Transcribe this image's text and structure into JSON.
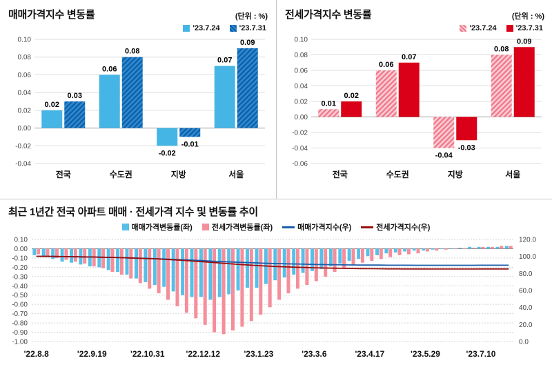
{
  "chart_data": [
    {
      "id": "svg-sale",
      "type": "bar",
      "title": "매매가격지수 변동률",
      "unit": "(단위 : %)",
      "categories": [
        "전국",
        "수도권",
        "지방",
        "서울"
      ],
      "series": [
        {
          "name": "'23.7.24",
          "color": "#45b5e5",
          "values": [
            0.02,
            0.06,
            -0.02,
            0.07
          ]
        },
        {
          "name": "'23.7.31",
          "color": "#2e8bd2",
          "stripe": "#0e5fa8",
          "values": [
            0.03,
            0.08,
            -0.01,
            0.09
          ]
        }
      ],
      "ylim": [
        -0.04,
        0.1
      ],
      "ytick": 0.02,
      "grid": true,
      "legend_position": "top-right"
    },
    {
      "id": "svg-jeonse",
      "type": "bar",
      "title": "전세가격지수 변동률",
      "unit": "(단위 : %)",
      "categories": [
        "전국",
        "수도권",
        "지방",
        "서울"
      ],
      "series": [
        {
          "name": "'23.7.24",
          "color": "#facdd4",
          "stripe": "#f0798b",
          "values": [
            0.01,
            0.06,
            -0.04,
            0.08
          ]
        },
        {
          "name": "'23.7.31",
          "color": "#da0017",
          "values": [
            0.02,
            0.07,
            -0.03,
            0.09
          ]
        }
      ],
      "ylim": [
        -0.06,
        0.1
      ],
      "ytick": 0.02,
      "grid": true,
      "legend_position": "top-right"
    },
    {
      "id": "svg-trend",
      "type": "bar+line",
      "title": "최근 1년간 전국 아파트 매매 · 전세가격 지수 및 변동률 추이",
      "x_tick_labels": [
        "'22.8.8",
        "'22.9.19",
        "'22.10.31",
        "'22.12.12",
        "'23.1.23",
        "'23.3.6",
        "'23.4.17",
        "'23.5.29",
        "'23.7.10"
      ],
      "x_tick_indices": [
        0,
        6,
        12,
        18,
        24,
        30,
        36,
        42,
        48
      ],
      "bar_series": [
        {
          "name": "매매가격변동률(좌)",
          "color": "#56c0e8",
          "values": [
            -0.07,
            -0.09,
            -0.11,
            -0.14,
            -0.15,
            -0.17,
            -0.19,
            -0.2,
            -0.23,
            -0.25,
            -0.28,
            -0.32,
            -0.36,
            -0.39,
            -0.41,
            -0.46,
            -0.5,
            -0.52,
            -0.52,
            -0.55,
            -0.52,
            -0.49,
            -0.45,
            -0.42,
            -0.42,
            -0.38,
            -0.34,
            -0.31,
            -0.28,
            -0.26,
            -0.24,
            -0.22,
            -0.19,
            -0.16,
            -0.13,
            -0.11,
            -0.08,
            -0.07,
            -0.05,
            -0.04,
            -0.03,
            -0.02,
            -0.02,
            -0.01,
            0.0,
            0.0,
            0.01,
            0.02,
            0.02,
            0.02,
            0.02,
            0.03
          ]
        },
        {
          "name": "전세가격변동률(좌)",
          "color": "#f58e9b",
          "values": [
            -0.06,
            -0.08,
            -0.1,
            -0.12,
            -0.14,
            -0.16,
            -0.19,
            -0.21,
            -0.25,
            -0.28,
            -0.32,
            -0.37,
            -0.43,
            -0.48,
            -0.55,
            -0.62,
            -0.69,
            -0.75,
            -0.82,
            -0.9,
            -0.92,
            -0.88,
            -0.84,
            -0.78,
            -0.71,
            -0.63,
            -0.55,
            -0.48,
            -0.43,
            -0.39,
            -0.35,
            -0.3,
            -0.25,
            -0.21,
            -0.18,
            -0.15,
            -0.13,
            -0.11,
            -0.09,
            -0.07,
            -0.06,
            -0.05,
            -0.03,
            -0.02,
            -0.01,
            0.0,
            0.0,
            0.01,
            0.02,
            0.02,
            0.03,
            0.03
          ]
        }
      ],
      "line_series": [
        {
          "name": "매매가격지수(우)",
          "color": "#1a5dab",
          "values": [
            100.1,
            100.0,
            99.9,
            99.8,
            99.6,
            99.5,
            99.3,
            99.1,
            98.9,
            98.6,
            98.3,
            98.0,
            97.7,
            97.3,
            96.9,
            96.4,
            96.0,
            95.5,
            95.0,
            94.4,
            94.0,
            93.5,
            93.1,
            92.7,
            92.3,
            91.9,
            91.6,
            91.3,
            91.1,
            90.9,
            90.6,
            90.4,
            90.3,
            90.1,
            90.0,
            89.9,
            89.8,
            89.8,
            89.7,
            89.7,
            89.7,
            89.6,
            89.6,
            89.6,
            89.6,
            89.6,
            89.6,
            89.6,
            89.7,
            89.7,
            89.7,
            89.7
          ]
        },
        {
          "name": "전세가격지수(우)",
          "color": "#961010",
          "values": [
            100.1,
            100.1,
            100.0,
            99.8,
            99.7,
            99.5,
            99.4,
            99.1,
            98.9,
            98.6,
            98.3,
            97.9,
            97.5,
            97.1,
            96.5,
            95.9,
            95.3,
            94.5,
            93.8,
            92.9,
            92.1,
            91.3,
            90.5,
            89.8,
            89.2,
            88.6,
            88.1,
            87.7,
            87.3,
            87.0,
            86.7,
            86.4,
            86.2,
            86.0,
            85.9,
            85.7,
            85.6,
            85.5,
            85.4,
            85.4,
            85.3,
            85.3,
            85.3,
            85.2,
            85.2,
            85.2,
            85.2,
            85.2,
            85.3,
            85.3,
            85.3,
            85.3
          ]
        }
      ],
      "left_ylim": [
        -1.0,
        0.1
      ],
      "left_ytick": 0.1,
      "right_ylim": [
        0,
        120
      ],
      "right_ytick": 20,
      "grid": "dotted",
      "legend_position": "top-center"
    }
  ]
}
